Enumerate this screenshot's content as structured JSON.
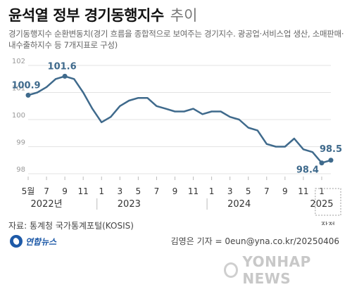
{
  "header": {
    "title": "윤석열 정부 경기동행지수",
    "title_suffix": "추이",
    "subtitle": "경기동행지수 순환변동치(경기 흐름을 종합적으로 보여주는 경기지수. 광공업·서비스업 생산, 소매판매·내수출하지수 등 7개지표로 구성)"
  },
  "chart_data": {
    "type": "line",
    "ylim": [
      98,
      102
    ],
    "y_ticks": [
      98,
      99,
      100,
      101,
      102
    ],
    "x_tick_labels": [
      "5월",
      "7",
      "9",
      "11",
      "1",
      "3",
      "5",
      "7",
      "9",
      "11",
      "1",
      "3",
      "5",
      "7",
      "9",
      "11",
      "1"
    ],
    "year_labels": [
      "2022년",
      "2023",
      "2024",
      "2025"
    ],
    "x": [
      "2022-05",
      "2022-06",
      "2022-07",
      "2022-08",
      "2022-09",
      "2022-10",
      "2022-11",
      "2022-12",
      "2023-01",
      "2023-02",
      "2023-03",
      "2023-04",
      "2023-05",
      "2023-06",
      "2023-07",
      "2023-08",
      "2023-09",
      "2023-10",
      "2023-11",
      "2023-12",
      "2024-01",
      "2024-02",
      "2024-03",
      "2024-04",
      "2024-05",
      "2024-06",
      "2024-07",
      "2024-08",
      "2024-09",
      "2024-10",
      "2024-11",
      "2024-12",
      "2025-01",
      "2025-02"
    ],
    "values": [
      100.9,
      101.0,
      101.2,
      101.5,
      101.6,
      101.5,
      101.0,
      100.4,
      99.9,
      100.1,
      100.5,
      100.7,
      100.8,
      100.8,
      100.5,
      100.4,
      100.3,
      100.3,
      100.4,
      100.2,
      100.3,
      100.3,
      100.1,
      100.0,
      99.7,
      99.6,
      99.1,
      99.0,
      99.0,
      99.3,
      98.9,
      98.8,
      98.4,
      98.5
    ],
    "annotations": [
      {
        "x": "2022-05",
        "label": "100.9"
      },
      {
        "x": "2022-09",
        "label": "101.6"
      },
      {
        "x": "2025-01",
        "label": "98.4"
      },
      {
        "x": "2025-02",
        "label": "98.5"
      }
    ],
    "provisional_label": "잠정",
    "line_color": "#3f6a8c",
    "grid": true
  },
  "footer": {
    "source": "자료: 통계청 국가통계포털(KOSIS)",
    "logo": "연합뉴스",
    "credit": "김영은 기자 = 0eun@yna.co.kr/20250406",
    "watermark": "YONHAP NEWS"
  }
}
